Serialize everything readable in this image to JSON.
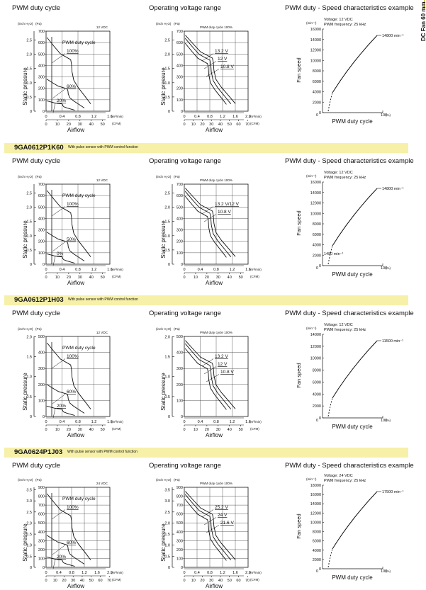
{
  "side_tab": "DC Fan 60 mm sq.",
  "sections": [
    {
      "model": "",
      "desc": ""
    },
    {
      "model": "9GA0612P1K60",
      "desc": "With pulse sensor with PWM control function"
    },
    {
      "model": "9GA0612P1H03",
      "desc": "With pulse sensor with PWM control function"
    },
    {
      "model": "9GA0624P1J03",
      "desc": "With pulse sensor with PWM control function"
    }
  ],
  "titles": {
    "duty": "PWM duty cycle",
    "voltage": "Operating voltage range",
    "speed": "PWM duty - Speed characteristics example"
  },
  "labels": {
    "inch": "(inch H₂O)",
    "pa": "(Pa)",
    "static_pressure": "Static pressure",
    "airflow": "Airflow",
    "m3min": "(m³/min)",
    "cfm": "(CFM)",
    "fan_speed": "Fan speed",
    "min_unit": "(min⁻¹)",
    "pct": "(%)",
    "x_duty": "PWM duty cycle",
    "duty_label": "PWM duty cycle",
    "duty_header": "PWM duty cycle 100%",
    "pwm_freq": "PWM frequency: 25 kHz"
  },
  "charts": [
    {
      "duty": {
        "voltage": "12 VDC",
        "pct_labels": [
          "100%",
          "60%",
          "20%"
        ],
        "pa_ticks": [
          "700",
          "600",
          "500",
          "400",
          "300",
          "200",
          "100",
          "0"
        ],
        "inch_ticks": [
          "2.5",
          "2.0",
          "1.5",
          "1.0",
          "0.5",
          "0"
        ],
        "inch_pos": [
          2.5,
          2.0,
          1.5,
          1.0,
          0.5,
          0
        ],
        "m3_ticks": [
          "0",
          "0.4",
          "0.8",
          "1.2",
          "1.6"
        ],
        "cfm_ticks": [
          "0",
          "10",
          "20",
          "30",
          "40",
          "50"
        ]
      },
      "voltage": {
        "v_labels": [
          "13.2 V",
          "12 V",
          "10.8 V"
        ],
        "pa_ticks": [
          "700",
          "600",
          "500",
          "400",
          "300",
          "200",
          "100",
          "0"
        ],
        "inch_ticks": [
          "2.5",
          "2.0",
          "1.5",
          "1.0",
          "0.5",
          "0"
        ],
        "inch_pos": [
          2.5,
          2.0,
          1.5,
          1.0,
          0.5,
          0
        ],
        "m3_ticks": [
          "0",
          "0.4",
          "0.8",
          "1.2",
          "1.6",
          "2.0"
        ],
        "cfm_ticks": [
          "0",
          "10",
          "20",
          "30",
          "40",
          "50",
          "60",
          "70"
        ]
      },
      "speed": {
        "voltage_line": "Voltage: 12 VDC",
        "y_ticks": [
          "16000",
          "14000",
          "12000",
          "10000",
          "8000",
          "6000",
          "4000",
          "2000",
          "0"
        ],
        "top_label": "14800 min⁻¹",
        "x_ticks": [
          "0",
          "100"
        ]
      }
    },
    {
      "duty": {
        "voltage": "12 VDC",
        "pct_labels": [
          "100%",
          "50%",
          "0%"
        ],
        "pa_ticks": [
          "700",
          "600",
          "500",
          "400",
          "300",
          "200",
          "100",
          "0"
        ],
        "inch_ticks": [
          "2.5",
          "2.0",
          "1.5",
          "1.0",
          "0.5",
          "0"
        ],
        "inch_pos": [
          2.5,
          2.0,
          1.5,
          1.0,
          0.5,
          0
        ],
        "m3_ticks": [
          "0",
          "0.4",
          "0.8",
          "1.2",
          "1.6"
        ],
        "cfm_ticks": [
          "0",
          "10",
          "20",
          "30",
          "40",
          "50"
        ]
      },
      "voltage": {
        "v_labels": [
          "13.2 V/12 V",
          "10.8 V"
        ],
        "pa_ticks": [
          "700",
          "600",
          "500",
          "400",
          "300",
          "200",
          "100",
          "0"
        ],
        "inch_ticks": [
          "2.5",
          "2.0",
          "1.5",
          "1.0",
          "0.5",
          "0"
        ],
        "inch_pos": [
          2.5,
          2.0,
          1.5,
          1.0,
          0.5,
          0
        ],
        "m3_ticks": [
          "0",
          "0.4",
          "0.8",
          "1.2",
          "1.6"
        ],
        "cfm_ticks": [
          "0",
          "10",
          "20",
          "30",
          "40",
          "50"
        ]
      },
      "speed": {
        "voltage_line": "Voltage: 12 VDC",
        "y_ticks": [
          "16000",
          "14000",
          "12000",
          "10000",
          "8000",
          "6000",
          "4000",
          "2000",
          "0"
        ],
        "top_label": "14800 min⁻¹",
        "bottom_label": "1480 min⁻¹",
        "x_ticks": [
          "0",
          "100"
        ]
      }
    },
    {
      "duty": {
        "voltage": "12 VDC",
        "pct_labels": [
          "100%",
          "60%",
          "20%"
        ],
        "pa_ticks": [
          "500",
          "400",
          "300",
          "200",
          "100",
          "0"
        ],
        "inch_ticks": [
          "2.0",
          "1.5",
          "1.0",
          "0.5",
          "0"
        ],
        "inch_pos": [
          2.0,
          1.5,
          1.0,
          0.5,
          0
        ],
        "m3_ticks": [
          "0",
          "0.4",
          "0.8",
          "1.2",
          "1.6"
        ],
        "cfm_ticks": [
          "0",
          "10",
          "20",
          "30",
          "40",
          "50"
        ]
      },
      "voltage": {
        "v_labels": [
          "13.2 V",
          "12 V",
          "10.8 V"
        ],
        "pa_ticks": [
          "500",
          "400",
          "300",
          "200",
          "100",
          "0"
        ],
        "inch_ticks": [
          "2.0",
          "1.5",
          "1.0",
          "0.5",
          "0"
        ],
        "inch_pos": [
          2.0,
          1.5,
          1.0,
          0.5,
          0
        ],
        "m3_ticks": [
          "0",
          "0.4",
          "0.8",
          "1.2",
          "1.6"
        ],
        "cfm_ticks": [
          "0",
          "10",
          "20",
          "30",
          "40",
          "50"
        ]
      },
      "speed": {
        "voltage_line": "Voltage: 12 VDC",
        "y_ticks": [
          "14000",
          "12000",
          "10000",
          "8000",
          "6000",
          "4000",
          "2000",
          "0"
        ],
        "top_label": "11500 min⁻¹",
        "x_ticks": [
          "0",
          "100"
        ]
      }
    },
    {
      "duty": {
        "voltage": "24 VDC",
        "pct_labels": [
          "100%",
          "60%",
          "20%"
        ],
        "pa_ticks": [
          "900",
          "800",
          "700",
          "600",
          "500",
          "400",
          "300",
          "200",
          "100",
          "0"
        ],
        "inch_ticks": [
          "3.5",
          "3.0",
          "2.5",
          "2.0",
          "1.5",
          "1.0",
          "0.5",
          "0"
        ],
        "inch_pos": [
          3.5,
          3.0,
          2.5,
          2.0,
          1.5,
          1.0,
          0.5,
          0
        ],
        "m3_ticks": [
          "0",
          "0.4",
          "0.8",
          "1.2",
          "1.6",
          "2.0"
        ],
        "cfm_ticks": [
          "0",
          "10",
          "20",
          "30",
          "40",
          "50",
          "60",
          "70"
        ]
      },
      "voltage": {
        "v_labels": [
          "25.2 V",
          "24 V",
          "21.6 V"
        ],
        "pa_ticks": [
          "900",
          "800",
          "700",
          "600",
          "500",
          "400",
          "300",
          "200",
          "100",
          "0"
        ],
        "inch_ticks": [
          "3.5",
          "3.0",
          "2.5",
          "2.0",
          "1.5",
          "1.0",
          "0.5",
          "0"
        ],
        "inch_pos": [
          3.5,
          3.0,
          2.5,
          2.0,
          1.5,
          1.0,
          0.5,
          0
        ],
        "m3_ticks": [
          "0",
          "0.4",
          "0.8",
          "1.2",
          "1.6",
          "2.0"
        ],
        "cfm_ticks": [
          "0",
          "10",
          "20",
          "30",
          "40",
          "50",
          "60",
          "70"
        ]
      },
      "speed": {
        "voltage_line": "Voltage: 24 VDC",
        "y_ticks": [
          "18000",
          "16000",
          "14000",
          "12000",
          "10000",
          "8000",
          "6000",
          "4000",
          "2000",
          "0"
        ],
        "top_label": "17500 min⁻¹",
        "x_ticks": [
          "0",
          "100"
        ]
      }
    }
  ]
}
